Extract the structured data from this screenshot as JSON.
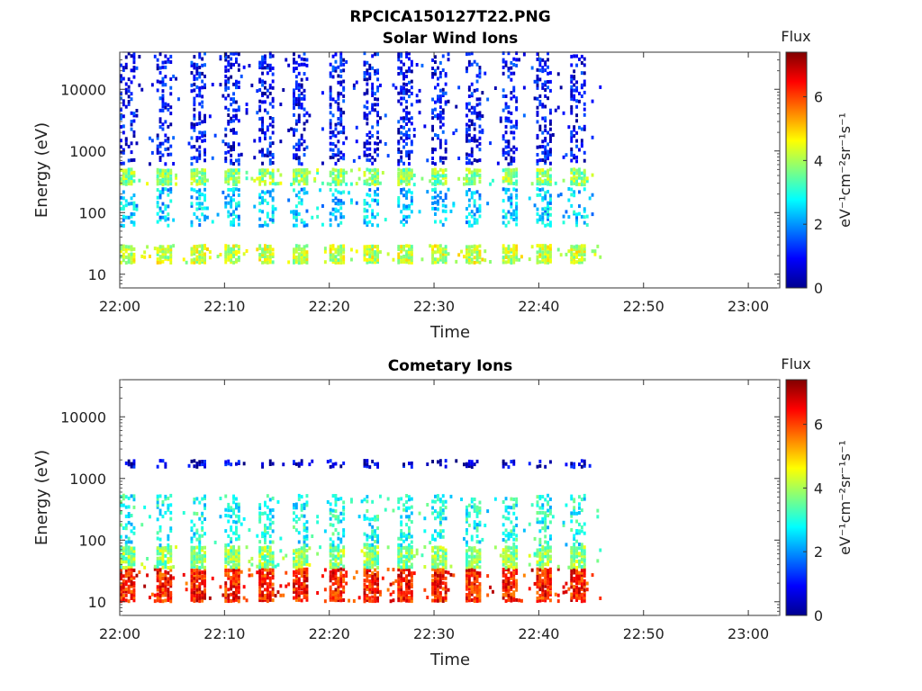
{
  "title": "RPCICA150127T22.PNG",
  "chart_data": [
    {
      "type": "heatmap",
      "title": "Solar Wind Ions",
      "xlabel": "Time",
      "ylabel": "Energy (eV)",
      "x_ticks": [
        "22:00",
        "22:10",
        "22:20",
        "22:30",
        "22:40",
        "22:50",
        "23:00"
      ],
      "x_range": [
        "22:00",
        "23:03"
      ],
      "y_ticks": [
        "10",
        "100",
        "1000",
        "10000"
      ],
      "y_range": [
        6,
        40000
      ],
      "y_scale": "log",
      "data_end": "22:46",
      "colorbar": {
        "title": "Flux",
        "label": "eV⁻¹cm⁻²sr⁻¹s⁻¹",
        "ticks": [
          "0",
          "2",
          "4",
          "6"
        ],
        "range": [
          0,
          7.4
        ],
        "colormap": "jet"
      },
      "bands": [
        {
          "energy": [
            15,
            30
          ],
          "flux": 4.2
        },
        {
          "energy": [
            280,
            520
          ],
          "flux": 3.8
        },
        {
          "energy": [
            60,
            250
          ],
          "flux": 2.4
        },
        {
          "energy": [
            600,
            40000
          ],
          "flux": 0.9
        }
      ]
    },
    {
      "type": "heatmap",
      "title": "Cometary Ions",
      "xlabel": "Time",
      "ylabel": "Energy (eV)",
      "x_ticks": [
        "22:00",
        "22:10",
        "22:20",
        "22:30",
        "22:40",
        "22:50",
        "23:00"
      ],
      "x_range": [
        "22:00",
        "23:03"
      ],
      "y_ticks": [
        "10",
        "100",
        "1000",
        "10000"
      ],
      "y_range": [
        6,
        40000
      ],
      "y_scale": "log",
      "data_end": "22:46",
      "colorbar": {
        "title": "Flux",
        "label": "eV⁻¹cm⁻²sr⁻¹s⁻¹",
        "ticks": [
          "0",
          "2",
          "4",
          "6"
        ],
        "range": [
          0,
          7.4
        ],
        "colormap": "jet"
      },
      "bands": [
        {
          "energy": [
            10,
            35
          ],
          "flux": 6.3
        },
        {
          "energy": [
            35,
            80
          ],
          "flux": 3.8
        },
        {
          "energy": [
            80,
            550
          ],
          "flux": 2.9
        },
        {
          "energy": [
            1500,
            2000
          ],
          "flux": 0.6
        }
      ]
    }
  ]
}
